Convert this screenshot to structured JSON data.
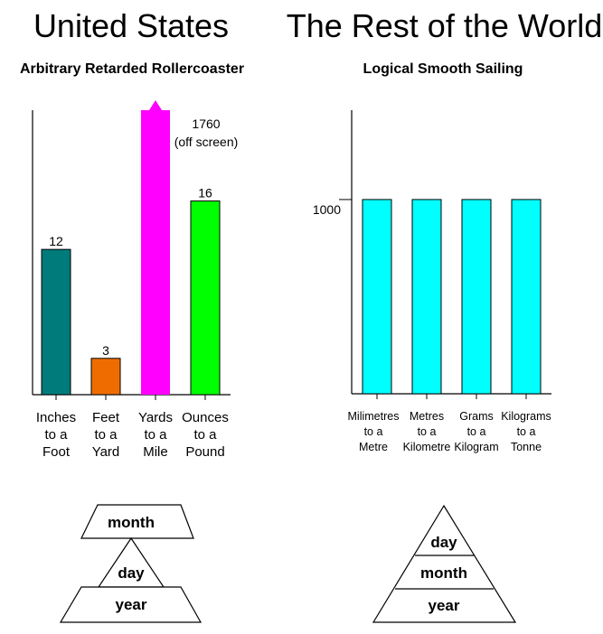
{
  "headings": {
    "left": "United States",
    "right": "The Rest of the World"
  },
  "subtitles": {
    "left": "Arbitrary Retarded Rollercoaster",
    "right": "Logical Smooth Sailing"
  },
  "chart_data": [
    {
      "type": "bar",
      "title": "Arbitrary Retarded Rollercoaster",
      "categories": [
        [
          "Inches",
          "to a",
          "Foot"
        ],
        [
          "Feet",
          "to a",
          "Yard"
        ],
        [
          "Yards",
          "to a",
          "Mile"
        ],
        [
          "Ounces",
          "to a",
          "Pound"
        ]
      ],
      "values": [
        12,
        3,
        1760,
        16
      ],
      "data_labels": [
        "12",
        "3",
        "1760",
        "16"
      ],
      "off_screen_note": "(off screen)",
      "colors": [
        "#007b7b",
        "#ef6d00",
        "#ff00ff",
        "#00ff00"
      ],
      "ylim": [
        0,
        23.5
      ],
      "clipped": [
        false,
        false,
        true,
        false
      ]
    },
    {
      "type": "bar",
      "title": "Logical Smooth Sailing",
      "categories": [
        [
          "Milimetres",
          "to a",
          "Metre"
        ],
        [
          "Metres",
          "to a",
          "Kilometre"
        ],
        [
          "Grams",
          "to a",
          "Kilogram"
        ],
        [
          "Kilograms",
          "to a",
          "Tonne"
        ]
      ],
      "values": [
        1000,
        1000,
        1000,
        1000
      ],
      "y_ticks": [
        "1000"
      ],
      "colors": [
        "#00ffff",
        "#00ffff",
        "#00ffff",
        "#00ffff"
      ],
      "ylim": [
        0,
        1460
      ]
    }
  ],
  "date_diagrams": {
    "left": {
      "top": "month",
      "middle": "day",
      "bottom": "year"
    },
    "right": {
      "top": "day",
      "middle": "month",
      "bottom": "year"
    }
  }
}
